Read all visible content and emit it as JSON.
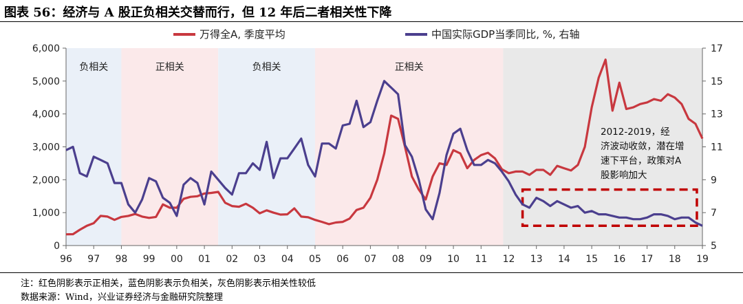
{
  "title": "图表 56：经济与 A 股正负相关交替而行，但 12 年后二者相关性下降",
  "notes": {
    "note": "注：红色阴影表示正相关，蓝色阴影表示负相关，灰色阴影表示相关性较低",
    "source": "数据来源：Wind，兴业证券经济与金融研究院整理"
  },
  "colors": {
    "red_line": "#C8383F",
    "blue_line": "#4B3F8E",
    "pink_shade": "#FBE9EA",
    "blue_shade": "#EAF0F8",
    "gray_shade": "#E9E9E9",
    "dashed_box": "#C00000"
  },
  "chart_data": {
    "type": "line",
    "legend_placement": "top",
    "legend": [
      "万得全A, 季度平均",
      "中国实际GDP当季同比, %, 右轴"
    ],
    "x_ticks": [
      "96",
      "97",
      "98",
      "99",
      "00",
      "01",
      "02",
      "03",
      "04",
      "05",
      "06",
      "07",
      "08",
      "09",
      "10",
      "11",
      "12",
      "13",
      "14",
      "15",
      "16",
      "17",
      "18",
      "19"
    ],
    "xlim": [
      1996,
      2019
    ],
    "y_left": {
      "lim": [
        0,
        6000
      ],
      "ticks": [
        "0",
        "1,000",
        "2,000",
        "3,000",
        "4,000",
        "5,000",
        "6,000"
      ]
    },
    "y_right": {
      "lim": [
        5,
        17
      ],
      "ticks": [
        "5",
        "7",
        "9",
        "11",
        "13",
        "15",
        "17"
      ]
    },
    "regions": [
      {
        "label": "负相关",
        "start": 1996,
        "end": 1998,
        "kind": "negative"
      },
      {
        "label": "正相关",
        "start": 1998,
        "end": 2001.5,
        "kind": "positive"
      },
      {
        "label": "负相关",
        "start": 2001.5,
        "end": 2005,
        "kind": "negative"
      },
      {
        "label": "正相关",
        "start": 2005,
        "end": 2011.8,
        "kind": "positive"
      },
      {
        "label": "",
        "start": 2011.8,
        "end": 2019,
        "kind": "low"
      }
    ],
    "annotation": "2012-2019，经济波动收敛，潜在增速下平台，政策对A股影响加大",
    "highlight_box": {
      "x_start": 2012.5,
      "x_end": 2018.8,
      "y_right_start": 6.2,
      "y_right_end": 8.4
    },
    "series": [
      {
        "name": "万得全A, 季度平均",
        "axis": "left",
        "points": [
          [
            1996.0,
            340
          ],
          [
            1996.25,
            345
          ],
          [
            1996.5,
            480
          ],
          [
            1996.75,
            600
          ],
          [
            1997.0,
            680
          ],
          [
            1997.25,
            900
          ],
          [
            1997.5,
            880
          ],
          [
            1997.75,
            780
          ],
          [
            1998.0,
            870
          ],
          [
            1998.25,
            900
          ],
          [
            1998.5,
            960
          ],
          [
            1998.75,
            880
          ],
          [
            1999.0,
            840
          ],
          [
            1999.25,
            870
          ],
          [
            1999.5,
            1250
          ],
          [
            1999.75,
            1150
          ],
          [
            2000.0,
            1150
          ],
          [
            2000.25,
            1420
          ],
          [
            2000.5,
            1480
          ],
          [
            2000.75,
            1500
          ],
          [
            2001.0,
            1580
          ],
          [
            2001.25,
            1600
          ],
          [
            2001.5,
            1630
          ],
          [
            2001.75,
            1300
          ],
          [
            2002.0,
            1200
          ],
          [
            2002.25,
            1180
          ],
          [
            2002.5,
            1270
          ],
          [
            2002.75,
            1150
          ],
          [
            2003.0,
            980
          ],
          [
            2003.25,
            1070
          ],
          [
            2003.5,
            1000
          ],
          [
            2003.75,
            940
          ],
          [
            2004.0,
            950
          ],
          [
            2004.25,
            1130
          ],
          [
            2004.5,
            880
          ],
          [
            2004.75,
            860
          ],
          [
            2005.0,
            780
          ],
          [
            2005.25,
            720
          ],
          [
            2005.5,
            650
          ],
          [
            2005.75,
            700
          ],
          [
            2006.0,
            720
          ],
          [
            2006.25,
            820
          ],
          [
            2006.5,
            1080
          ],
          [
            2006.75,
            1150
          ],
          [
            2007.0,
            1450
          ],
          [
            2007.25,
            2000
          ],
          [
            2007.5,
            2800
          ],
          [
            2007.75,
            3950
          ],
          [
            2008.0,
            3850
          ],
          [
            2008.25,
            3000
          ],
          [
            2008.5,
            2100
          ],
          [
            2008.75,
            1700
          ],
          [
            2009.0,
            1400
          ],
          [
            2009.25,
            2100
          ],
          [
            2009.5,
            2500
          ],
          [
            2009.75,
            2450
          ],
          [
            2010.0,
            2900
          ],
          [
            2010.25,
            2800
          ],
          [
            2010.5,
            2350
          ],
          [
            2010.75,
            2600
          ],
          [
            2011.0,
            2750
          ],
          [
            2011.25,
            2820
          ],
          [
            2011.5,
            2650
          ],
          [
            2011.75,
            2320
          ],
          [
            2012.0,
            2200
          ],
          [
            2012.25,
            2250
          ],
          [
            2012.5,
            2250
          ],
          [
            2012.75,
            2150
          ],
          [
            2013.0,
            2300
          ],
          [
            2013.25,
            2300
          ],
          [
            2013.5,
            2150
          ],
          [
            2013.75,
            2420
          ],
          [
            2014.0,
            2350
          ],
          [
            2014.25,
            2280
          ],
          [
            2014.5,
            2450
          ],
          [
            2014.75,
            3000
          ],
          [
            2015.0,
            4200
          ],
          [
            2015.25,
            5100
          ],
          [
            2015.5,
            5650
          ],
          [
            2015.75,
            4100
          ],
          [
            2016.0,
            4950
          ],
          [
            2016.25,
            4150
          ],
          [
            2016.5,
            4200
          ],
          [
            2016.75,
            4300
          ],
          [
            2017.0,
            4350
          ],
          [
            2017.25,
            4450
          ],
          [
            2017.5,
            4400
          ],
          [
            2017.75,
            4600
          ],
          [
            2018.0,
            4500
          ],
          [
            2018.25,
            4300
          ],
          [
            2018.5,
            3850
          ],
          [
            2018.75,
            3700
          ],
          [
            2019.0,
            3250
          ]
        ]
      },
      {
        "name": "中国实际GDP当季同比, %, 右轴",
        "axis": "right",
        "points": [
          [
            1996.0,
            10.8
          ],
          [
            1996.25,
            11.0
          ],
          [
            1996.5,
            9.4
          ],
          [
            1996.75,
            9.2
          ],
          [
            1997.0,
            10.4
          ],
          [
            1997.25,
            10.2
          ],
          [
            1997.5,
            10.0
          ],
          [
            1997.75,
            8.8
          ],
          [
            1998.0,
            8.8
          ],
          [
            1998.25,
            7.5
          ],
          [
            1998.5,
            7.0
          ],
          [
            1998.75,
            7.8
          ],
          [
            1999.0,
            9.1
          ],
          [
            1999.25,
            8.9
          ],
          [
            1999.5,
            7.9
          ],
          [
            1999.75,
            7.6
          ],
          [
            2000.0,
            6.8
          ],
          [
            2000.25,
            8.7
          ],
          [
            2000.5,
            9.1
          ],
          [
            2000.75,
            8.8
          ],
          [
            2001.0,
            7.5
          ],
          [
            2001.25,
            9.5
          ],
          [
            2001.5,
            9.0
          ],
          [
            2001.75,
            8.5
          ],
          [
            2002.0,
            8.1
          ],
          [
            2002.25,
            9.4
          ],
          [
            2002.5,
            9.4
          ],
          [
            2002.75,
            10.0
          ],
          [
            2003.0,
            9.6
          ],
          [
            2003.25,
            11.3
          ],
          [
            2003.5,
            9.1
          ],
          [
            2003.75,
            10.3
          ],
          [
            2004.0,
            10.3
          ],
          [
            2004.25,
            10.9
          ],
          [
            2004.5,
            11.5
          ],
          [
            2004.75,
            9.9
          ],
          [
            2005.0,
            9.2
          ],
          [
            2005.25,
            11.2
          ],
          [
            2005.5,
            11.2
          ],
          [
            2005.75,
            10.9
          ],
          [
            2006.0,
            12.3
          ],
          [
            2006.25,
            12.4
          ],
          [
            2006.5,
            13.8
          ],
          [
            2006.75,
            12.2
          ],
          [
            2007.0,
            12.5
          ],
          [
            2007.25,
            13.8
          ],
          [
            2007.5,
            15.0
          ],
          [
            2007.75,
            14.6
          ],
          [
            2008.0,
            14.2
          ],
          [
            2008.25,
            11.1
          ],
          [
            2008.5,
            10.4
          ],
          [
            2008.75,
            9.0
          ],
          [
            2009.0,
            7.2
          ],
          [
            2009.25,
            6.6
          ],
          [
            2009.5,
            8.2
          ],
          [
            2009.75,
            10.5
          ],
          [
            2010.0,
            11.8
          ],
          [
            2010.25,
            12.1
          ],
          [
            2010.5,
            10.8
          ],
          [
            2010.75,
            9.9
          ],
          [
            2011.0,
            9.9
          ],
          [
            2011.25,
            10.2
          ],
          [
            2011.5,
            10.0
          ],
          [
            2011.75,
            9.5
          ],
          [
            2012.0,
            8.9
          ],
          [
            2012.25,
            8.1
          ],
          [
            2012.5,
            7.5
          ],
          [
            2012.75,
            7.3
          ],
          [
            2013.0,
            7.9
          ],
          [
            2013.25,
            7.7
          ],
          [
            2013.5,
            7.4
          ],
          [
            2013.75,
            7.7
          ],
          [
            2014.0,
            7.5
          ],
          [
            2014.25,
            7.3
          ],
          [
            2014.5,
            7.4
          ],
          [
            2014.75,
            7.0
          ],
          [
            2015.0,
            7.1
          ],
          [
            2015.25,
            6.9
          ],
          [
            2015.5,
            6.9
          ],
          [
            2015.75,
            6.8
          ],
          [
            2016.0,
            6.7
          ],
          [
            2016.25,
            6.7
          ],
          [
            2016.5,
            6.6
          ],
          [
            2016.75,
            6.6
          ],
          [
            2017.0,
            6.7
          ],
          [
            2017.25,
            6.9
          ],
          [
            2017.5,
            6.9
          ],
          [
            2017.75,
            6.8
          ],
          [
            2018.0,
            6.6
          ],
          [
            2018.25,
            6.7
          ],
          [
            2018.5,
            6.7
          ],
          [
            2018.75,
            6.4
          ],
          [
            2019.0,
            6.2
          ]
        ]
      }
    ]
  }
}
